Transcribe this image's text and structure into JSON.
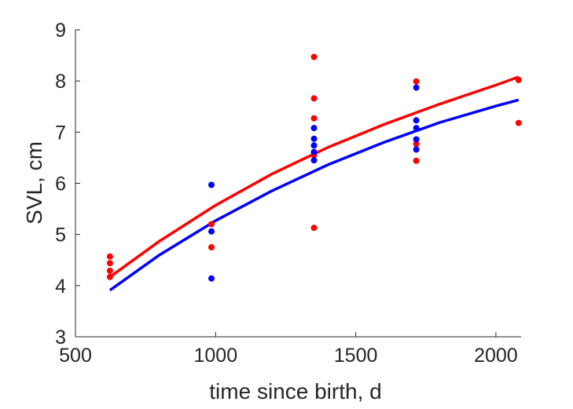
{
  "chart_data": {
    "type": "scatter",
    "xlabel": "time since birth, d",
    "ylabel": "SVL, cm",
    "xlim": [
      500,
      2090
    ],
    "ylim": [
      3,
      9
    ],
    "x_ticks": [
      500,
      1000,
      1500,
      2000
    ],
    "y_ticks": [
      3,
      4,
      5,
      6,
      7,
      8,
      9
    ],
    "x_tick_labels": [
      "500",
      "1000",
      "1500",
      "2000"
    ],
    "y_tick_labels": [
      "3",
      "4",
      "5",
      "6",
      "7",
      "8",
      "9"
    ],
    "grid": false,
    "series": [
      {
        "color": "#ff0000",
        "points": [
          [
            623,
            4.57
          ],
          [
            623,
            4.44
          ],
          [
            623,
            4.29
          ],
          [
            623,
            4.17
          ],
          [
            985,
            5.2
          ],
          [
            985,
            4.75
          ],
          [
            1351,
            8.47
          ],
          [
            1351,
            7.66
          ],
          [
            1351,
            7.27
          ],
          [
            1351,
            6.61
          ],
          [
            1351,
            6.55
          ],
          [
            1351,
            5.13
          ],
          [
            1716,
            7.99
          ],
          [
            1716,
            6.77
          ],
          [
            1716,
            6.44
          ],
          [
            2081,
            8.02
          ],
          [
            2081,
            7.18
          ]
        ],
        "curve": {
          "x": [
            623,
            800,
            1000,
            1200,
            1400,
            1600,
            1800,
            2000,
            2081
          ],
          "y": [
            4.17,
            4.87,
            5.57,
            6.18,
            6.7,
            7.15,
            7.55,
            7.92,
            8.08
          ]
        }
      },
      {
        "color": "#0000ff",
        "points": [
          [
            985,
            5.97
          ],
          [
            985,
            5.06
          ],
          [
            985,
            4.14
          ],
          [
            1351,
            7.08
          ],
          [
            1351,
            6.87
          ],
          [
            1351,
            6.74
          ],
          [
            1351,
            6.61
          ],
          [
            1351,
            6.45
          ],
          [
            1716,
            7.87
          ],
          [
            1716,
            7.23
          ],
          [
            1716,
            7.08
          ],
          [
            1716,
            6.86
          ],
          [
            1716,
            6.66
          ]
        ],
        "curve": {
          "x": [
            623,
            800,
            1000,
            1200,
            1400,
            1600,
            1800,
            2000,
            2081
          ],
          "y": [
            3.91,
            4.6,
            5.27,
            5.85,
            6.36,
            6.8,
            7.19,
            7.51,
            7.63
          ]
        }
      }
    ]
  }
}
